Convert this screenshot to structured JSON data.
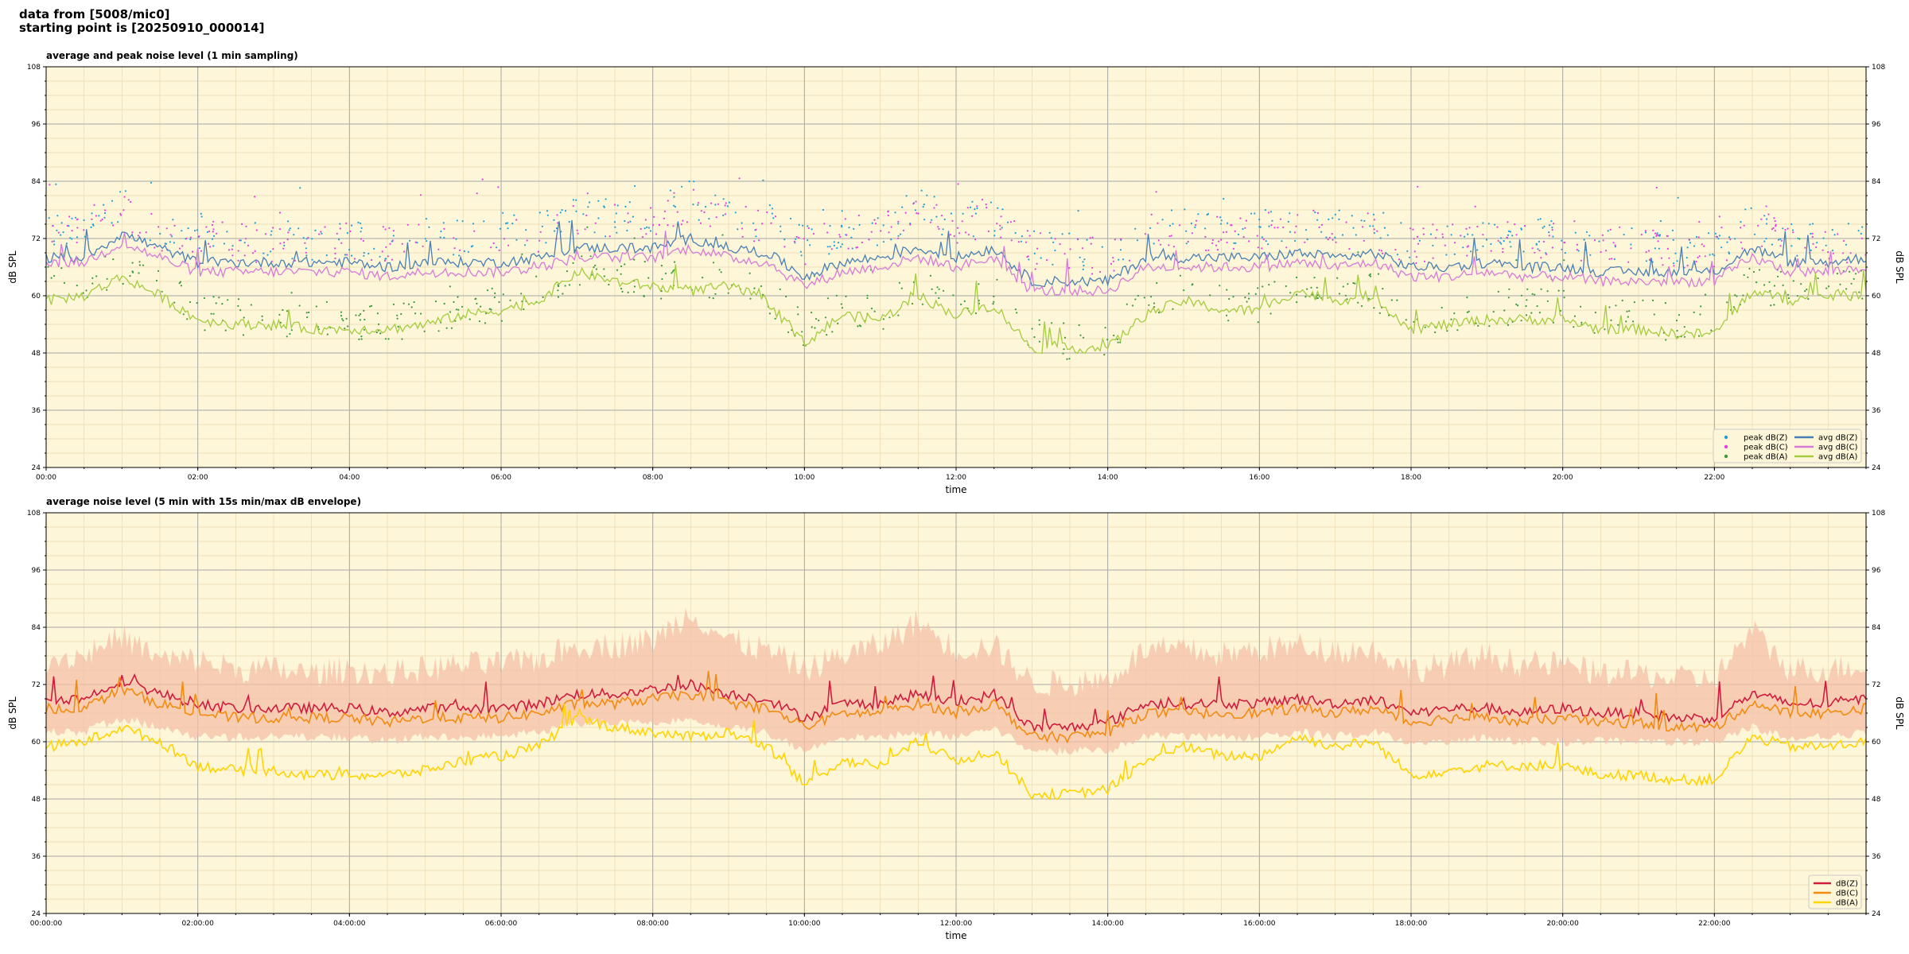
{
  "header": {
    "line1": "data from [5008/mic0]",
    "line2": "starting point is [20250910_000014]"
  },
  "chart_data": [
    {
      "type": "line",
      "title": "average and peak noise level (1 min sampling)",
      "xlabel": "time",
      "ylabel": "dB SPL",
      "ylim": [
        24,
        108
      ],
      "xlim_hours": [
        0,
        24
      ],
      "yticks": [
        "24",
        "36",
        "48",
        "60",
        "72",
        "84",
        "96",
        "108"
      ],
      "xticks": [
        "00:00",
        "02:00",
        "04:00",
        "06:00",
        "08:00",
        "10:00",
        "12:00",
        "14:00",
        "16:00",
        "18:00",
        "20:00",
        "22:00"
      ],
      "grid": true,
      "legend_position": "lower-right",
      "background": "#fdf6d8",
      "x": [
        0,
        0.5,
        1,
        1.5,
        2,
        2.5,
        3,
        3.5,
        4,
        4.5,
        5,
        5.5,
        6,
        6.5,
        7,
        7.5,
        8,
        8.5,
        9,
        9.5,
        10,
        10.5,
        11,
        11.5,
        12,
        12.5,
        13,
        13.5,
        14,
        14.5,
        15,
        15.5,
        16,
        16.5,
        17,
        17.5,
        18,
        18.5,
        19,
        19.5,
        20,
        20.5,
        21,
        21.5,
        22,
        22.5,
        23,
        23.5,
        24
      ],
      "series": [
        {
          "name": "peak dB(Z)",
          "kind": "scatter",
          "color": "#1f9fd8",
          "values": [
            74,
            75,
            78,
            74,
            73,
            72,
            71,
            71,
            72,
            71,
            72,
            72,
            73,
            73,
            76,
            76,
            77,
            80,
            76,
            75,
            71,
            73,
            74,
            78,
            75,
            76,
            70,
            69,
            69,
            74,
            74,
            74,
            74,
            75,
            74,
            74,
            71,
            72,
            73,
            72,
            72,
            71,
            71,
            70,
            70,
            76,
            71,
            71,
            72
          ]
        },
        {
          "name": "peak dB(C)",
          "kind": "scatter",
          "color": "#e040e0",
          "values": [
            73,
            74,
            77,
            73,
            72,
            71,
            70,
            70,
            71,
            70,
            71,
            71,
            72,
            72,
            75,
            75,
            76,
            79,
            75,
            74,
            70,
            72,
            73,
            77,
            74,
            75,
            69,
            68,
            68,
            73,
            73,
            73,
            73,
            74,
            73,
            73,
            70,
            71,
            72,
            71,
            71,
            70,
            70,
            69,
            69,
            75,
            70,
            70,
            71
          ]
        },
        {
          "name": "peak dB(A)",
          "kind": "scatter",
          "color": "#3a9a3a",
          "values": [
            62,
            63,
            66,
            62,
            56,
            55,
            55,
            54,
            54,
            54,
            55,
            57,
            58,
            60,
            66,
            64,
            63,
            63,
            63,
            60,
            52,
            57,
            56,
            62,
            58,
            60,
            51,
            50,
            50,
            58,
            60,
            58,
            58,
            62,
            60,
            61,
            55,
            56,
            57,
            57,
            57,
            55,
            55,
            54,
            54,
            63,
            60,
            61,
            62
          ]
        },
        {
          "name": "avg dB(Z)",
          "kind": "line",
          "color": "#4a7fb5",
          "values": [
            68,
            68,
            73,
            70,
            67,
            67,
            67,
            67,
            67,
            66,
            67,
            67,
            67,
            68,
            70,
            70,
            70,
            72,
            70,
            69,
            64,
            67,
            68,
            70,
            68,
            70,
            63,
            63,
            63,
            68,
            68,
            68,
            68,
            69,
            68,
            69,
            66,
            66,
            67,
            66,
            66,
            65,
            65,
            65,
            65,
            70,
            67,
            67,
            68
          ]
        },
        {
          "name": "avg dB(C)",
          "kind": "line",
          "color": "#d77ad7",
          "values": [
            67,
            67,
            71,
            68,
            65,
            65,
            65,
            65,
            65,
            64,
            65,
            65,
            65,
            66,
            68,
            68,
            68,
            70,
            68,
            67,
            62,
            65,
            66,
            68,
            66,
            68,
            61,
            61,
            61,
            66,
            66,
            66,
            66,
            67,
            66,
            67,
            64,
            64,
            65,
            64,
            64,
            63,
            63,
            63,
            63,
            68,
            65,
            65,
            66
          ]
        },
        {
          "name": "avg dB(A)",
          "kind": "line",
          "color": "#a4cc40",
          "values": [
            59,
            60,
            64,
            60,
            55,
            54,
            54,
            53,
            53,
            53,
            54,
            56,
            57,
            59,
            65,
            63,
            62,
            61,
            62,
            59,
            50,
            56,
            55,
            60,
            56,
            58,
            49,
            49,
            49,
            56,
            59,
            57,
            57,
            61,
            59,
            60,
            53,
            54,
            55,
            55,
            55,
            53,
            53,
            52,
            52,
            61,
            59,
            60,
            60
          ]
        }
      ]
    },
    {
      "type": "line",
      "title": "average noise level (5 min with 15s min/max dB envelope)",
      "xlabel": "time",
      "ylabel": "dB SPL",
      "ylim": [
        24,
        108
      ],
      "xlim_hours": [
        0,
        24
      ],
      "yticks": [
        "24",
        "36",
        "48",
        "60",
        "72",
        "84",
        "96",
        "108"
      ],
      "xticks": [
        "00:00:00",
        "02:00:00",
        "04:00:00",
        "06:00:00",
        "08:00:00",
        "10:00:00",
        "12:00:00",
        "14:00:00",
        "16:00:00",
        "18:00:00",
        "20:00:00",
        "22:00:00"
      ],
      "grid": true,
      "legend_position": "lower-right",
      "background": "#fdf6d8",
      "x": [
        0,
        0.5,
        1,
        1.5,
        2,
        2.5,
        3,
        3.5,
        4,
        4.5,
        5,
        5.5,
        6,
        6.5,
        7,
        7.5,
        8,
        8.5,
        9,
        9.5,
        10,
        10.5,
        11,
        11.5,
        12,
        12.5,
        13,
        13.5,
        14,
        14.5,
        15,
        15.5,
        16,
        16.5,
        17,
        17.5,
        18,
        18.5,
        19,
        19.5,
        20,
        20.5,
        21,
        21.5,
        22,
        22.5,
        23,
        23.5,
        24
      ],
      "envelope": {
        "color": "#f4c0a8",
        "min": [
          63,
          63,
          66,
          64,
          62,
          62,
          62,
          62,
          62,
          61,
          62,
          62,
          62,
          63,
          65,
          65,
          65,
          66,
          64,
          63,
          59,
          62,
          62,
          63,
          62,
          64,
          59,
          59,
          59,
          62,
          62,
          62,
          62,
          63,
          62,
          63,
          61,
          61,
          62,
          61,
          61,
          61,
          61,
          61,
          61,
          64,
          62,
          62,
          63
        ],
        "max": [
          76,
          77,
          81,
          76,
          76,
          74,
          74,
          73,
          74,
          73,
          74,
          75,
          75,
          76,
          79,
          79,
          80,
          86,
          80,
          78,
          74,
          77,
          79,
          84,
          78,
          79,
          71,
          71,
          72,
          78,
          78,
          77,
          78,
          79,
          78,
          78,
          74,
          75,
          77,
          75,
          75,
          73,
          73,
          72,
          72,
          82,
          74,
          74,
          75
        ]
      },
      "series": [
        {
          "name": "dB(Z)",
          "kind": "line",
          "color": "#d01c3c",
          "values": [
            69,
            69,
            73,
            70,
            68,
            67,
            67,
            67,
            67,
            66,
            67,
            67,
            67,
            68,
            70,
            70,
            71,
            72,
            70,
            69,
            65,
            68,
            68,
            70,
            68,
            70,
            63,
            63,
            64,
            68,
            68,
            68,
            68,
            69,
            68,
            69,
            66,
            67,
            67,
            66,
            67,
            66,
            66,
            65,
            65,
            70,
            68,
            68,
            69
          ]
        },
        {
          "name": "dB(C)",
          "kind": "line",
          "color": "#f28c10",
          "values": [
            67,
            67,
            71,
            68,
            66,
            65,
            65,
            65,
            65,
            64,
            65,
            65,
            65,
            66,
            68,
            68,
            69,
            70,
            68,
            67,
            63,
            66,
            66,
            68,
            66,
            68,
            61,
            61,
            62,
            66,
            66,
            66,
            66,
            67,
            66,
            67,
            64,
            65,
            65,
            64,
            65,
            64,
            64,
            63,
            63,
            68,
            66,
            66,
            67
          ]
        },
        {
          "name": "dB(A)",
          "kind": "line",
          "color": "#ffd400",
          "values": [
            59,
            60,
            63,
            60,
            55,
            54,
            54,
            53,
            53,
            53,
            54,
            56,
            57,
            59,
            65,
            63,
            62,
            61,
            62,
            59,
            51,
            56,
            55,
            60,
            56,
            58,
            49,
            49,
            50,
            56,
            59,
            57,
            57,
            61,
            59,
            60,
            53,
            54,
            55,
            55,
            55,
            53,
            53,
            52,
            52,
            61,
            59,
            59,
            60
          ]
        }
      ]
    }
  ]
}
